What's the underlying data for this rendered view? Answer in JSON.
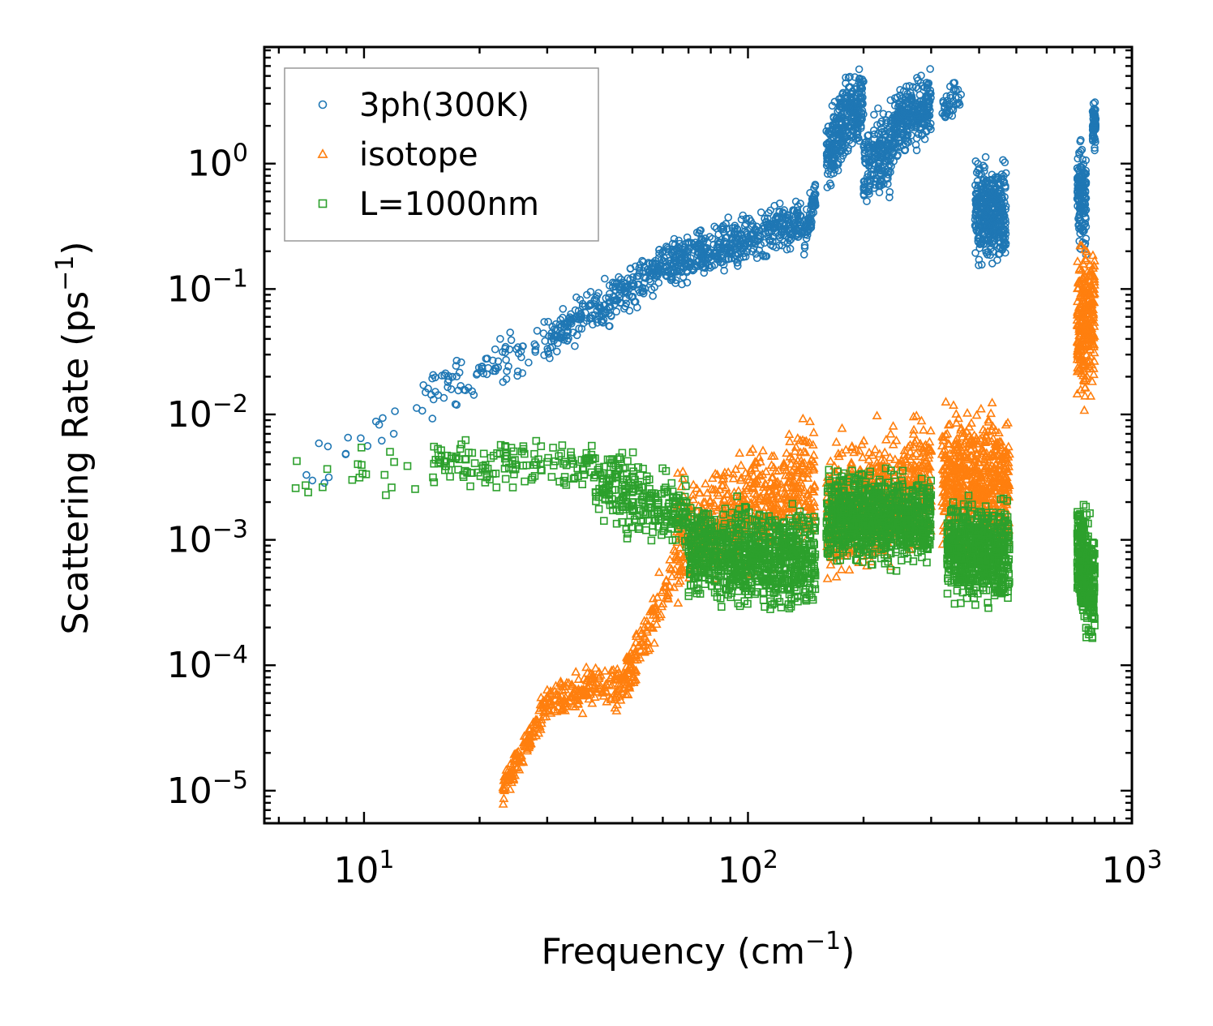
{
  "chart_data": {
    "type": "scatter",
    "title": "",
    "xlabel": "Frequency (cm",
    "xlabel_exp": "−1",
    "xlabel_tail": ")",
    "ylabel": "Scattering Rate (ps",
    "ylabel_exp": "−1",
    "ylabel_tail": ")",
    "xscale": "log",
    "yscale": "log",
    "xlim": [
      5.5,
      1000
    ],
    "ylim": [
      5.5e-06,
      8.5
    ],
    "legend_position": "top-left",
    "x_ticks": [
      {
        "value": 10,
        "base": "10",
        "exp": "1"
      },
      {
        "value": 100,
        "base": "10",
        "exp": "2"
      },
      {
        "value": 1000,
        "base": "10",
        "exp": "3"
      }
    ],
    "y_ticks": [
      {
        "value": 1e-05,
        "base": "10",
        "exp": "−5"
      },
      {
        "value": 0.0001,
        "base": "10",
        "exp": "−4"
      },
      {
        "value": 0.001,
        "base": "10",
        "exp": "−3"
      },
      {
        "value": 0.01,
        "base": "10",
        "exp": "−2"
      },
      {
        "value": 0.1,
        "base": "10",
        "exp": "−1"
      },
      {
        "value": 1,
        "base": "10",
        "exp": "0"
      }
    ],
    "series": [
      {
        "name": "3ph(300K)",
        "marker": "circle",
        "color": "#1f77b4",
        "bands": [
          {
            "x0": 6.5,
            "x1": 14,
            "y0": 0.0027,
            "y1": 0.012,
            "n": 18,
            "spread": 0.35
          },
          {
            "x0": 14,
            "x1": 30,
            "y0": 0.013,
            "y1": 0.04,
            "n": 90,
            "spread": 0.3
          },
          {
            "x0": 30,
            "x1": 60,
            "y0": 0.04,
            "y1": 0.15,
            "n": 260,
            "spread": 0.28
          },
          {
            "x0": 60,
            "x1": 140,
            "y0": 0.15,
            "y1": 0.35,
            "n": 480,
            "spread": 0.3
          },
          {
            "x0": 140,
            "x1": 150,
            "y0": 0.25,
            "y1": 0.55,
            "n": 60,
            "spread": 0.25
          },
          {
            "x0": 160,
            "x1": 200,
            "y0": 1.2,
            "y1": 3.5,
            "n": 320,
            "spread": 0.5
          },
          {
            "x0": 200,
            "x1": 240,
            "y0": 0.9,
            "y1": 1.5,
            "n": 200,
            "spread": 0.55
          },
          {
            "x0": 240,
            "x1": 300,
            "y0": 2.0,
            "y1": 3.0,
            "n": 260,
            "spread": 0.4
          },
          {
            "x0": 320,
            "x1": 360,
            "y0": 2.8,
            "y1": 4.0,
            "n": 40,
            "spread": 0.25
          },
          {
            "x0": 390,
            "x1": 470,
            "y0": 0.4,
            "y1": 0.4,
            "n": 380,
            "spread": 0.6
          },
          {
            "x0": 720,
            "x1": 760,
            "y0": 0.6,
            "y1": 0.5,
            "n": 150,
            "spread": 0.7
          },
          {
            "x0": 790,
            "x1": 805,
            "y0": 2.0,
            "y1": 2.2,
            "n": 60,
            "spread": 0.3
          }
        ]
      },
      {
        "name": "isotope",
        "marker": "triangle",
        "color": "#ff7f0e",
        "bands": [
          {
            "x0": 23,
            "x1": 30,
            "y0": 1e-05,
            "y1": 5e-05,
            "n": 120,
            "spread": 0.2
          },
          {
            "x0": 30,
            "x1": 48,
            "y0": 5e-05,
            "y1": 8e-05,
            "n": 160,
            "spread": 0.25
          },
          {
            "x0": 45,
            "x1": 65,
            "y0": 5e-05,
            "y1": 0.0006,
            "n": 140,
            "spread": 0.35
          },
          {
            "x0": 65,
            "x1": 150,
            "y0": 0.001,
            "y1": 0.003,
            "n": 600,
            "spread": 0.7
          },
          {
            "x0": 160,
            "x1": 300,
            "y0": 0.0015,
            "y1": 0.003,
            "n": 700,
            "spread": 0.8
          },
          {
            "x0": 320,
            "x1": 480,
            "y0": 0.003,
            "y1": 0.003,
            "n": 600,
            "spread": 0.8
          },
          {
            "x0": 720,
            "x1": 800,
            "y0": 0.05,
            "y1": 0.06,
            "n": 260,
            "spread": 0.9
          }
        ]
      },
      {
        "name": "L=1000nm",
        "marker": "square",
        "color": "#2ca02c",
        "bands": [
          {
            "x0": 6.5,
            "x1": 15,
            "y0": 0.003,
            "y1": 0.004,
            "n": 20,
            "spread": 0.3
          },
          {
            "x0": 15,
            "x1": 40,
            "y0": 0.004,
            "y1": 0.004,
            "n": 150,
            "spread": 0.3
          },
          {
            "x0": 40,
            "x1": 70,
            "y0": 0.003,
            "y1": 0.0015,
            "n": 260,
            "spread": 0.45
          },
          {
            "x0": 70,
            "x1": 150,
            "y0": 0.0008,
            "y1": 0.0007,
            "n": 900,
            "spread": 0.6
          },
          {
            "x0": 160,
            "x1": 300,
            "y0": 0.0015,
            "y1": 0.0015,
            "n": 900,
            "spread": 0.55
          },
          {
            "x0": 330,
            "x1": 480,
            "y0": 0.0008,
            "y1": 0.0008,
            "n": 650,
            "spread": 0.6
          },
          {
            "x0": 720,
            "x1": 800,
            "y0": 0.0008,
            "y1": 0.0004,
            "n": 320,
            "spread": 0.7
          }
        ]
      }
    ]
  }
}
